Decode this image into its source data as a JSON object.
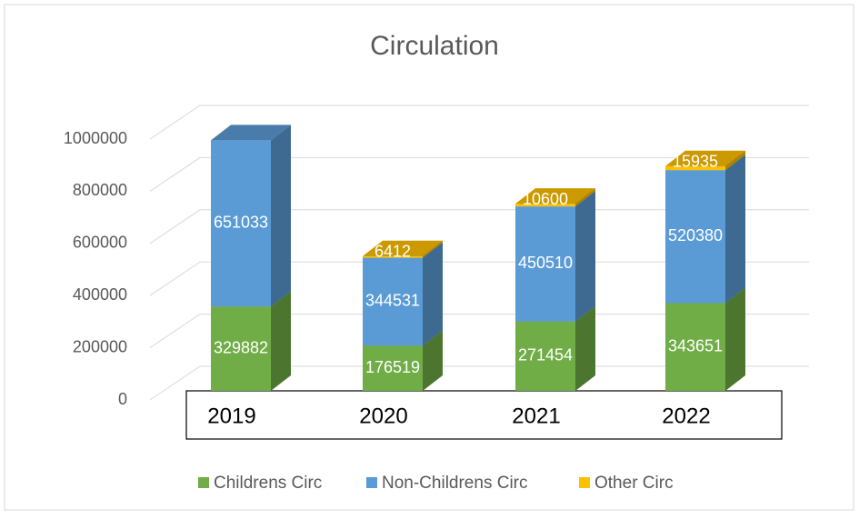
{
  "chart_data": {
    "type": "bar3d_stacked",
    "title": "Circulation",
    "categories": [
      "2019",
      "2020",
      "2021",
      "2022"
    ],
    "series": [
      {
        "name": "Childrens Circ",
        "color": "#70ad47",
        "values": [
          329882,
          176519,
          271454,
          343651
        ]
      },
      {
        "name": "Non-Childrens Circ",
        "color": "#5b9bd5",
        "values": [
          651033,
          344531,
          450510,
          520380
        ]
      },
      {
        "name": "Other Circ",
        "color": "#ffc000",
        "values": [
          null,
          6412,
          10600,
          15935
        ]
      }
    ],
    "ylim": [
      0,
      1000000
    ],
    "yticks": [
      0,
      200000,
      400000,
      600000,
      800000,
      1000000
    ],
    "grid": true,
    "legend": "bottom"
  }
}
